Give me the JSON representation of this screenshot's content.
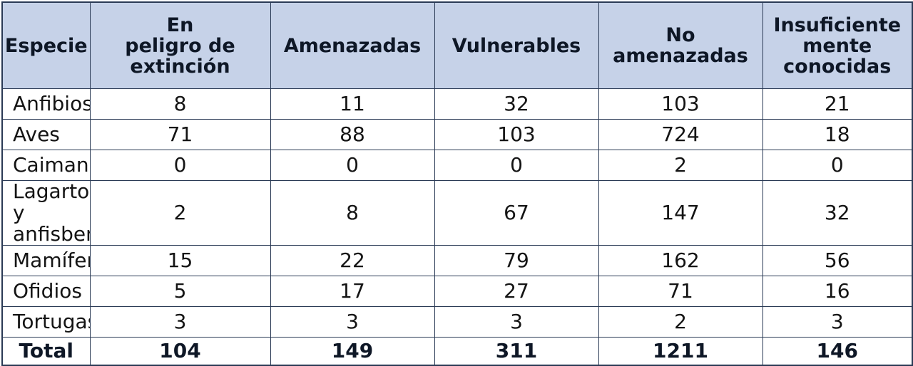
{
  "table": {
    "headers": [
      {
        "key": "species",
        "lines": [
          "Especie"
        ]
      },
      {
        "key": "endangered",
        "lines": [
          "En",
          "peligro de",
          "extinción"
        ]
      },
      {
        "key": "threatened",
        "lines": [
          "Amenazadas"
        ]
      },
      {
        "key": "vulnerable",
        "lines": [
          "Vulnerables"
        ]
      },
      {
        "key": "not_threatened",
        "lines": [
          "No",
          "amenazadas"
        ]
      },
      {
        "key": "insufficiently_known",
        "lines": [
          "Insuficiente",
          "mente",
          "conocidas"
        ]
      }
    ],
    "rows": [
      {
        "species": [
          "Anfibios"
        ],
        "values": [
          "8",
          "11",
          "32",
          "103",
          "21"
        ]
      },
      {
        "species": [
          "Aves"
        ],
        "values": [
          "71",
          "88",
          "103",
          "724",
          "18"
        ]
      },
      {
        "species": [
          "Caimanes"
        ],
        "values": [
          "0",
          "0",
          "0",
          "2",
          "0"
        ]
      },
      {
        "species": [
          "Lagartos y",
          "anfisbenas"
        ],
        "values": [
          "2",
          "8",
          "67",
          "147",
          "32"
        ]
      },
      {
        "species": [
          "Mamíferos"
        ],
        "values": [
          "15",
          "22",
          "79",
          "162",
          "56"
        ]
      },
      {
        "species": [
          "Ofidios"
        ],
        "values": [
          "5",
          "17",
          "27",
          "71",
          "16"
        ]
      },
      {
        "species": [
          "Tortugas"
        ],
        "values": [
          "3",
          "3",
          "3",
          "2",
          "3"
        ]
      }
    ],
    "total": {
      "label": "Total",
      "values": [
        "104",
        "149",
        "311",
        "1211",
        "146"
      ]
    }
  },
  "colors": {
    "header_bg": "#c6d2e8",
    "border": "#2a3a55"
  }
}
